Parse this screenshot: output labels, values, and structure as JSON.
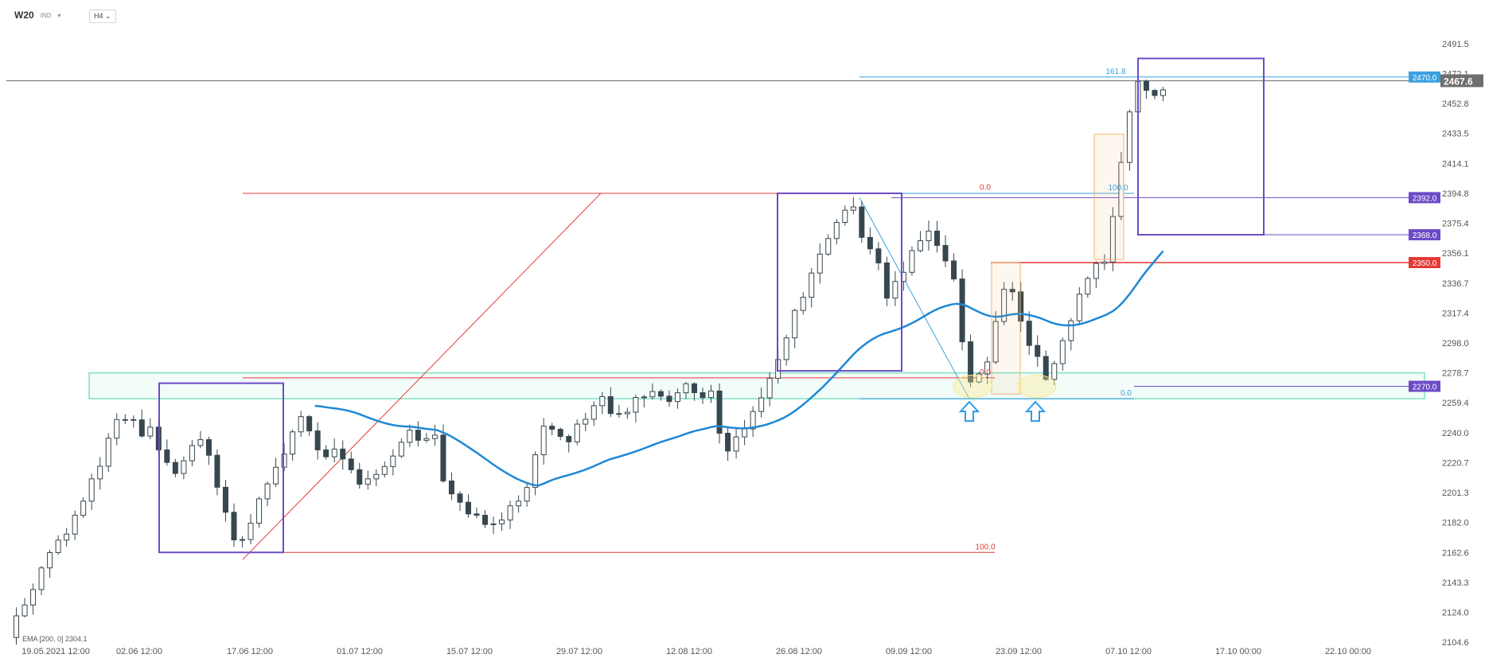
{
  "header": {
    "symbol": "W20",
    "market": "IND",
    "timeframe": "H4"
  },
  "indicator_label": "EMA [200, 0] 2304.1",
  "colors": {
    "bull": "#ffffff",
    "bear": "#37474f",
    "ema": "#1e88d6",
    "zone": "#7fe0c5",
    "box": "#6c4bc6",
    "red": "#e53935",
    "fib": "#3aa0e0",
    "orange": "#f4b46c",
    "ring": "#ffe98a",
    "arrow": "#2f9be8",
    "last": "#6e6e6e"
  },
  "chart_data": {
    "type": "candlestick",
    "title": "",
    "y_ticks": [
      "2491.5",
      "2472.1",
      "2452.8",
      "2433.5",
      "2414.1",
      "2394.8",
      "2375.4",
      "2356.1",
      "2336.7",
      "2317.4",
      "2298.0",
      "2278.7",
      "2259.4",
      "2240.0",
      "2220.7",
      "2201.3",
      "2182.0",
      "2162.6",
      "2143.3",
      "2124.0",
      "2104.6"
    ],
    "ylim": [
      2100,
      2497
    ],
    "x_ticks": [
      "19.05.2021 12:00",
      "02.06 12:00",
      "17.06 12:00",
      "01.07 12:00",
      "15.07 12:00",
      "29.07 12:00",
      "12.08 12:00",
      "26.08 12:00",
      "09.09 12:00",
      "23.09 12:00",
      "07.10 12:00",
      "17.10 00:00",
      "22.10 00:00"
    ],
    "last_price": "2467.6",
    "price_labels": [
      {
        "text": "2470.0",
        "value": 2470.0,
        "color": "#3aa0e0"
      },
      {
        "text": "2392.0",
        "value": 2392.0,
        "color": "#6c4bc6"
      },
      {
        "text": "2368.0",
        "value": 2368.0,
        "color": "#6c4bc6"
      },
      {
        "text": "2350.0",
        "value": 2350.0,
        "color": "#e53935"
      },
      {
        "text": "2270.0",
        "value": 2270.0,
        "color": "#6c4bc6"
      }
    ],
    "fib_labels": [
      "0.0",
      "100.0",
      "0.0",
      "161.8",
      "100.0",
      "0.0"
    ],
    "waypoints": [
      [
        0,
        2110
      ],
      [
        15,
        2135
      ],
      [
        30,
        2160
      ],
      [
        45,
        2180
      ],
      [
        55,
        2200
      ],
      [
        65,
        2215
      ],
      [
        75,
        2245
      ],
      [
        88,
        2250
      ],
      [
        95,
        2238
      ],
      [
        100,
        2248
      ],
      [
        110,
        2222
      ],
      [
        120,
        2215
      ],
      [
        130,
        2228
      ],
      [
        140,
        2235
      ],
      [
        150,
        2205
      ],
      [
        160,
        2180
      ],
      [
        165,
        2163
      ],
      [
        175,
        2185
      ],
      [
        185,
        2205
      ],
      [
        195,
        2220
      ],
      [
        210,
        2250
      ],
      [
        225,
        2222
      ],
      [
        235,
        2230
      ],
      [
        245,
        2220
      ],
      [
        255,
        2205
      ],
      [
        265,
        2213
      ],
      [
        280,
        2230
      ],
      [
        285,
        2246
      ],
      [
        295,
        2232
      ],
      [
        305,
        2245
      ],
      [
        310,
        2215
      ],
      [
        320,
        2198
      ],
      [
        330,
        2188
      ],
      [
        340,
        2182
      ],
      [
        345,
        2178
      ],
      [
        355,
        2185
      ],
      [
        365,
        2195
      ],
      [
        375,
        2212
      ],
      [
        380,
        2230
      ],
      [
        385,
        2250
      ],
      [
        400,
        2235
      ],
      [
        410,
        2245
      ],
      [
        425,
        2262
      ],
      [
        435,
        2248
      ],
      [
        445,
        2255
      ],
      [
        455,
        2265
      ],
      [
        465,
        2268
      ],
      [
        475,
        2262
      ],
      [
        485,
        2272
      ],
      [
        495,
        2262
      ],
      [
        505,
        2268
      ],
      [
        510,
        2240
      ],
      [
        515,
        2228
      ],
      [
        525,
        2240
      ],
      [
        535,
        2258
      ],
      [
        545,
        2272
      ],
      [
        555,
        2290
      ],
      [
        565,
        2320
      ],
      [
        575,
        2340
      ],
      [
        585,
        2358
      ],
      [
        595,
        2375
      ],
      [
        605,
        2390
      ],
      [
        612,
        2368
      ],
      [
        620,
        2355
      ],
      [
        625,
        2345
      ],
      [
        630,
        2330
      ],
      [
        640,
        2340
      ],
      [
        650,
        2362
      ],
      [
        660,
        2372
      ],
      [
        670,
        2355
      ],
      [
        680,
        2335
      ],
      [
        685,
        2292
      ],
      [
        690,
        2275
      ],
      [
        700,
        2278
      ],
      [
        705,
        2300
      ],
      [
        710,
        2318
      ],
      [
        715,
        2338
      ],
      [
        720,
        2330
      ],
      [
        725,
        2318
      ],
      [
        730,
        2302
      ],
      [
        735,
        2290
      ],
      [
        740,
        2288
      ],
      [
        745,
        2268
      ],
      [
        750,
        2285
      ],
      [
        755,
        2296
      ],
      [
        760,
        2308
      ],
      [
        765,
        2320
      ],
      [
        770,
        2332
      ],
      [
        775,
        2344
      ],
      [
        780,
        2350
      ],
      [
        785,
        2348
      ],
      [
        790,
        2365
      ],
      [
        795,
        2395
      ],
      [
        800,
        2425
      ],
      [
        805,
        2450
      ],
      [
        810,
        2468
      ],
      [
        815,
        2460
      ],
      [
        820,
        2455
      ],
      [
        825,
        2462
      ],
      [
        830,
        2462
      ]
    ]
  }
}
